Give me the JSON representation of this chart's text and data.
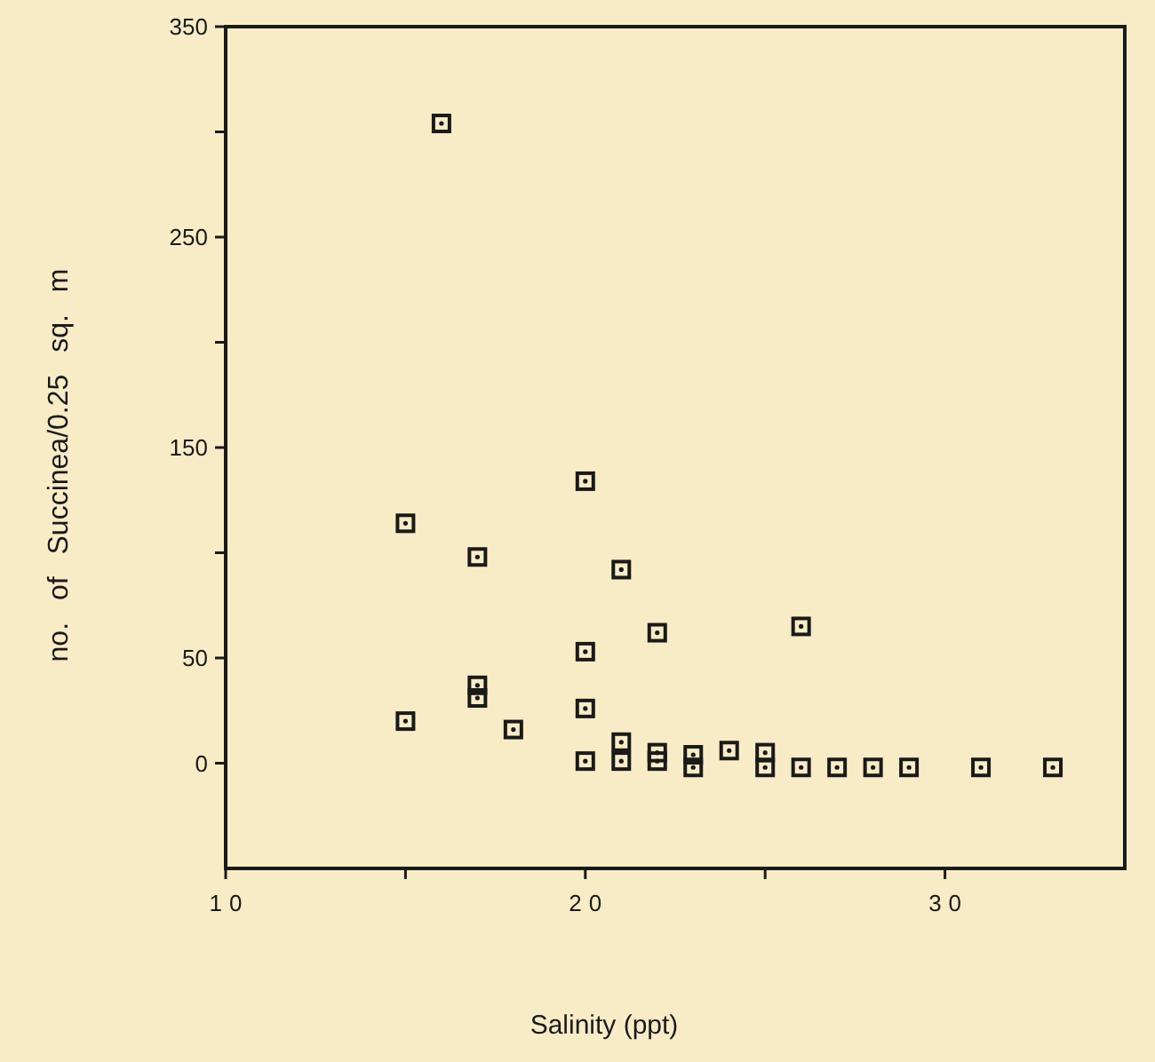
{
  "chart_data": {
    "type": "scatter",
    "xlabel": "Salinity (ppt)",
    "ylabel": "no. of Succinea/0.25 sq. m",
    "x": [
      16,
      20,
      15,
      17,
      21,
      22,
      26,
      20,
      17,
      17,
      15,
      18,
      20,
      21,
      20,
      21,
      22,
      22,
      23,
      23,
      24,
      25,
      25,
      26,
      27,
      28,
      29,
      31,
      33
    ],
    "series": [
      {
        "color": "#1a1a1a",
        "values": [
          304,
          134,
          114,
          98,
          92,
          62,
          65,
          53,
          37,
          31,
          20,
          16,
          26,
          10,
          1,
          1,
          1,
          5,
          4,
          -2,
          6,
          5,
          -2,
          -2,
          -2,
          -2,
          -2,
          -2,
          -2
        ]
      }
    ],
    "marker": "square",
    "grid": false,
    "xlim": [
      10,
      35
    ],
    "xticks": [
      10,
      {
        "value": 15,
        "label": null
      },
      20,
      {
        "value": 25,
        "label": null
      },
      30
    ],
    "ylim": [
      -50,
      350
    ],
    "yticks": [
      0,
      50,
      {
        "value": 100,
        "label": null
      },
      150,
      {
        "value": 200,
        "label": null
      },
      250,
      {
        "value": 300,
        "label": null
      },
      350
    ]
  }
}
